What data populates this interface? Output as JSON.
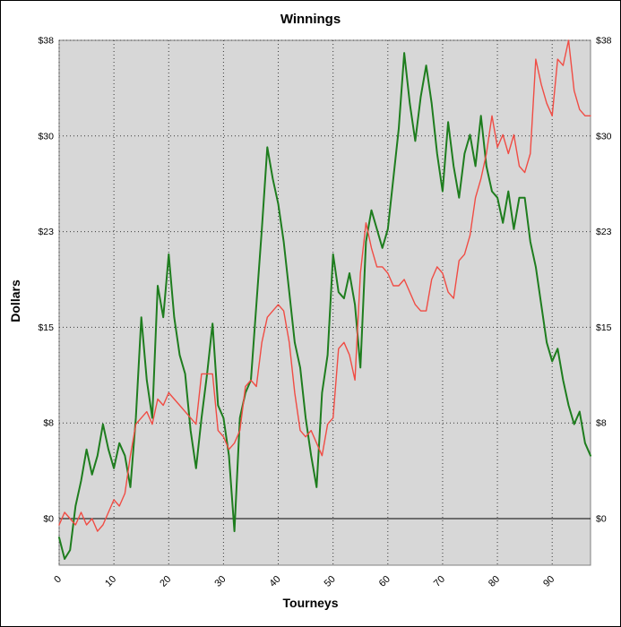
{
  "chart_data": {
    "type": "line",
    "title": "Winnings",
    "xlabel": "Tourneys",
    "ylabel": "Dollars",
    "plot_bg": "#d7d7d7",
    "plot_border": "#808080",
    "grid_color": "#3a3a3a",
    "zero_line_color": "#000000",
    "xlim": [
      0,
      97
    ],
    "ylim": [
      -3.7,
      38
    ],
    "x_step": 1,
    "xticks": [
      0,
      10,
      20,
      30,
      40,
      50,
      60,
      70,
      80,
      90
    ],
    "yticks": [
      {
        "value": 0,
        "label": "$0"
      },
      {
        "value": 7.6,
        "label": "$8"
      },
      {
        "value": 15.2,
        "label": "$15"
      },
      {
        "value": 22.8,
        "label": "$23"
      },
      {
        "value": 30.4,
        "label": "$30"
      },
      {
        "value": 38,
        "label": "$38"
      }
    ],
    "series": [
      {
        "name": "green",
        "color": "#1e7d1e",
        "width": 2,
        "values": [
          -1.5,
          -3.2,
          -2.5,
          1,
          3,
          5.5,
          3.5,
          5,
          7.5,
          5.5,
          4,
          6,
          5,
          2.5,
          8,
          16,
          11,
          8,
          18.5,
          16,
          21,
          16,
          13,
          11.5,
          7,
          4,
          8,
          11.5,
          15.5,
          9,
          8,
          5,
          -1,
          8,
          10,
          11,
          17,
          23,
          29.5,
          27,
          25,
          22,
          18,
          14,
          12,
          8,
          5,
          2.5,
          10,
          13,
          21,
          18,
          17.5,
          19.5,
          17,
          12,
          22,
          24.5,
          23,
          21.5,
          23,
          27,
          31,
          37,
          33,
          30,
          33.5,
          36,
          33,
          29,
          26,
          31.5,
          28,
          25.5,
          29,
          30.5,
          28,
          32,
          28,
          26,
          25.5,
          23.5,
          26,
          23,
          25.5,
          25.5,
          22,
          20,
          17,
          14,
          12.5,
          13.5,
          11,
          9,
          7.5,
          8.5,
          6,
          5
        ]
      },
      {
        "name": "red",
        "color": "#f04c44",
        "width": 1.4,
        "values": [
          -0.5,
          0.5,
          0,
          -0.5,
          0.5,
          -0.5,
          0,
          -1,
          -0.5,
          0.5,
          1.5,
          1,
          2,
          5,
          7.5,
          8,
          8.5,
          7.5,
          9.5,
          9,
          10,
          9.5,
          9,
          8.5,
          8,
          7.5,
          11.5,
          11.5,
          11.5,
          7,
          6.5,
          5.5,
          6,
          7,
          10.5,
          11,
          10.5,
          14,
          16,
          16.5,
          17,
          16.5,
          14,
          10,
          7,
          6.5,
          7,
          6,
          5,
          7.5,
          8,
          13.5,
          14,
          13,
          11,
          19.5,
          23.5,
          21.5,
          20,
          20,
          19.5,
          18.5,
          18.5,
          19,
          18,
          17,
          16.5,
          16.5,
          19,
          20,
          19.5,
          18,
          17.5,
          20.5,
          21,
          22.5,
          25.5,
          27,
          29,
          32,
          29.5,
          30.5,
          29,
          30.5,
          28,
          27.5,
          29,
          36.5,
          34.5,
          33,
          32,
          36.5,
          36,
          38,
          34,
          32.5,
          32,
          32
        ]
      }
    ]
  }
}
